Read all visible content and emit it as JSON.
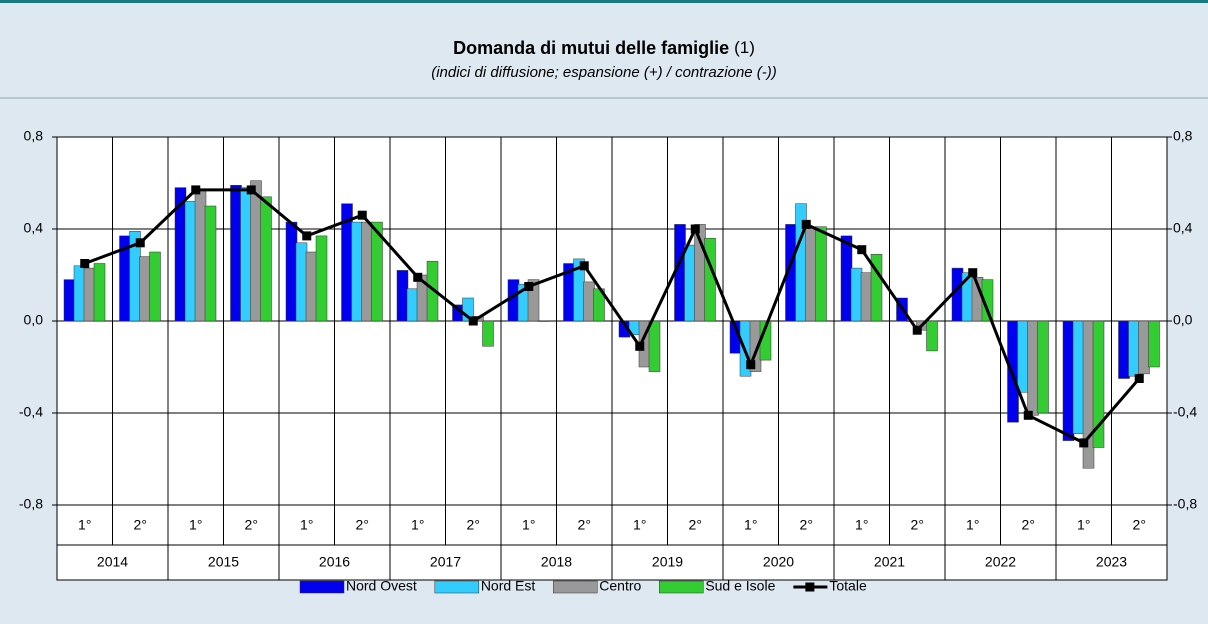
{
  "chart_data": {
    "type": "bar",
    "title": "Domanda di mutui delle famiglie",
    "title_note": "(1)",
    "subtitle": "(indici di diffusione; espansione (+) / contrazione (-))",
    "categories": [
      "1°",
      "2°",
      "1°",
      "2°",
      "1°",
      "2°",
      "1°",
      "2°",
      "1°",
      "2°",
      "1°",
      "2°",
      "1°",
      "2°",
      "1°",
      "2°",
      "1°",
      "2°",
      "1°",
      "2°"
    ],
    "groups": [
      "2014",
      "2015",
      "2016",
      "2017",
      "2018",
      "2019",
      "2020",
      "2021",
      "2022",
      "2023"
    ],
    "series": [
      {
        "name": "Nord Ovest",
        "color": "#0000ee",
        "values": [
          0.18,
          0.37,
          0.58,
          0.59,
          0.43,
          0.51,
          0.22,
          0.07,
          0.18,
          0.25,
          -0.07,
          0.42,
          -0.14,
          0.42,
          0.37,
          0.1,
          0.23,
          -0.44,
          -0.52,
          -0.25
        ]
      },
      {
        "name": "Nord Est",
        "color": "#33ccff",
        "values": [
          0.24,
          0.39,
          0.52,
          0.58,
          0.34,
          0.43,
          0.14,
          0.1,
          0.16,
          0.27,
          -0.06,
          0.33,
          -0.24,
          0.51,
          0.23,
          0.0,
          0.21,
          -0.31,
          -0.49,
          -0.24
        ]
      },
      {
        "name": "Centro",
        "color": "#999999",
        "values": [
          0.23,
          0.28,
          0.57,
          0.61,
          0.3,
          0.43,
          0.2,
          0.02,
          0.18,
          0.17,
          -0.2,
          0.42,
          -0.22,
          0.41,
          0.21,
          -0.04,
          0.19,
          -0.41,
          -0.64,
          -0.23
        ]
      },
      {
        "name": "Sud e Isole",
        "color": "#33cc33",
        "values": [
          0.25,
          0.3,
          0.5,
          0.54,
          0.37,
          0.43,
          0.26,
          -0.11,
          0.0,
          0.14,
          -0.22,
          0.36,
          -0.17,
          0.41,
          0.29,
          -0.13,
          0.18,
          -0.4,
          -0.55,
          -0.2
        ]
      },
      {
        "name": "Totale",
        "type": "line",
        "color": "#000000",
        "values": [
          0.25,
          0.34,
          0.57,
          0.57,
          0.37,
          0.46,
          0.19,
          0.0,
          0.15,
          0.24,
          -0.11,
          0.4,
          -0.19,
          0.42,
          0.31,
          -0.04,
          0.21,
          -0.41,
          -0.53,
          -0.25
        ]
      }
    ],
    "ylim": [
      -0.8,
      0.8
    ],
    "yticks": [
      {
        "value": -0.8,
        "label": "-0,8"
      },
      {
        "value": -0.4,
        "label": "-0,4"
      },
      {
        "value": 0,
        "label": "0,0"
      },
      {
        "value": 0.4,
        "label": "0,4"
      },
      {
        "value": 0.8,
        "label": "0,8"
      }
    ],
    "y2lim": [
      -0.8,
      0.8
    ],
    "y2ticks": [
      {
        "value": -0.8,
        "label": "-0,8"
      },
      {
        "value": -0.4,
        "label": "-0,4"
      },
      {
        "value": 0,
        "label": "0,0"
      },
      {
        "value": 0.4,
        "label": "0,4"
      },
      {
        "value": 0.8,
        "label": "0,8"
      }
    ],
    "grid": true,
    "legend": "bottom"
  }
}
